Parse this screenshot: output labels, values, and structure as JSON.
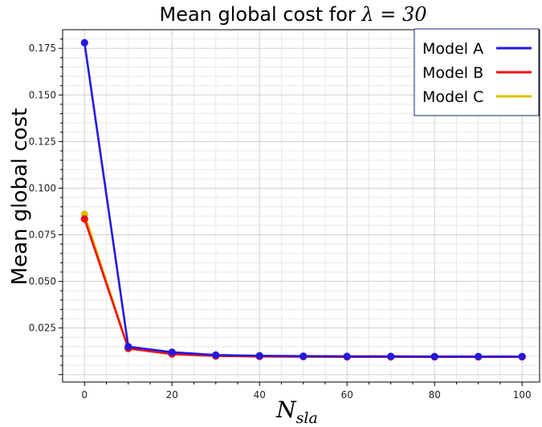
{
  "chart_data": {
    "type": "line",
    "title": "Mean global cost for λ = 30",
    "title_prefix": "Mean global cost for ",
    "title_math": "λ = 30",
    "xlabel": "N",
    "xlabel_sub": "sla",
    "ylabel": "Mean global cost",
    "xlim": [
      -5,
      104
    ],
    "ylim": [
      -0.004,
      0.185
    ],
    "x": [
      0,
      10,
      20,
      30,
      40,
      50,
      60,
      70,
      80,
      90,
      100
    ],
    "xticks": [
      0,
      20,
      40,
      60,
      80,
      100
    ],
    "xtick_labels": [
      "0",
      "20",
      "40",
      "60",
      "80",
      "100"
    ],
    "yticks": [
      0.025,
      0.05,
      0.075,
      0.1,
      0.125,
      0.15,
      0.175
    ],
    "ytick_labels": [
      "0.025",
      "0.050",
      "0.075",
      "0.100",
      "0.125",
      "0.150",
      "0.175"
    ],
    "grid": true,
    "legend_position": "top-right",
    "series": [
      {
        "name": "Model A",
        "color": "#2318e0",
        "values": [
          0.178,
          0.015,
          0.012,
          0.0105,
          0.0101,
          0.0099,
          0.0098,
          0.0098,
          0.0097,
          0.0097,
          0.0097
        ]
      },
      {
        "name": "Model B",
        "color": "#ee1010",
        "values": [
          0.0835,
          0.014,
          0.011,
          0.01,
          0.0097,
          0.0096,
          0.0095,
          0.0095,
          0.0095,
          0.0095,
          0.0095
        ]
      },
      {
        "name": "Model C",
        "color": "#d6c200",
        "values": [
          0.086,
          0.0142,
          0.0112,
          0.0101,
          0.0098,
          0.0097,
          0.0096,
          0.0096,
          0.0096,
          0.0096,
          0.0096
        ]
      }
    ]
  }
}
